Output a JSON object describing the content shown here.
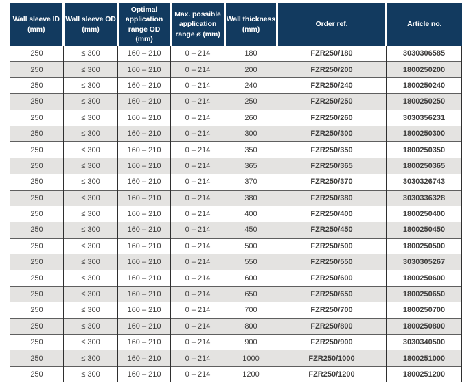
{
  "colors": {
    "header_bg": "#123a5f",
    "header_text": "#ffffff",
    "row_bg": "#ffffff",
    "row_alt_bg": "#e4e3e1",
    "vertical_grid_line": "#2f2f2f",
    "horizontal_grid_line": "#5f5f5f",
    "bottom_border": "#1a1a1a",
    "body_text": "#3f3e3d"
  },
  "table": {
    "columns": [
      {
        "id": "wall-sleeve-id",
        "label": "Wall sleeve ID (mm)",
        "label_lines": [
          "Wall sleeve ID",
          "(mm)"
        ],
        "width": 78,
        "bold": false
      },
      {
        "id": "wall-sleeve-od",
        "label": "Wall sleeve OD (mm)",
        "label_lines": [
          "Wall sleeve OD",
          "(mm)"
        ],
        "width": 79,
        "bold": false
      },
      {
        "id": "optimal-application-range-od",
        "label": "Optimal application range OD (mm)",
        "label_lines": [
          "Optimal",
          "application",
          "range OD",
          "(mm)"
        ],
        "width": 77,
        "bold": false
      },
      {
        "id": "max-possible-application-range",
        "label": "Max. possible application range ø (mm)",
        "label_lines": [
          "Max. possible",
          "application",
          "range ø (mm)"
        ],
        "width": 79,
        "bold": false
      },
      {
        "id": "wall-thickness",
        "label": "Wall thickness (mm)",
        "label_lines": [
          "Wall thickness",
          "(mm)"
        ],
        "width": 76,
        "bold": false
      },
      {
        "id": "order-ref",
        "label": "Order ref.",
        "label_lines": [
          "Order ref."
        ],
        "width": 159,
        "bold": true
      },
      {
        "id": "article-no",
        "label": "Article no.",
        "label_lines": [
          "Article no."
        ],
        "width": 110,
        "bold": true
      }
    ],
    "rows": [
      [
        "250",
        "≤ 300",
        "160 – 210",
        "0 – 214",
        "180",
        "FZR250/180",
        "3030306585"
      ],
      [
        "250",
        "≤ 300",
        "160 – 210",
        "0 – 214",
        "200",
        "FZR250/200",
        "1800250200"
      ],
      [
        "250",
        "≤ 300",
        "160 – 210",
        "0 – 214",
        "240",
        "FZR250/240",
        "1800250240"
      ],
      [
        "250",
        "≤ 300",
        "160 – 210",
        "0 – 214",
        "250",
        "FZR250/250",
        "1800250250"
      ],
      [
        "250",
        "≤ 300",
        "160 – 210",
        "0 – 214",
        "260",
        "FZR250/260",
        "3030356231"
      ],
      [
        "250",
        "≤ 300",
        "160 – 210",
        "0 – 214",
        "300",
        "FZR250/300",
        "1800250300"
      ],
      [
        "250",
        "≤ 300",
        "160 – 210",
        "0 – 214",
        "350",
        "FZR250/350",
        "1800250350"
      ],
      [
        "250",
        "≤ 300",
        "160 – 210",
        "0 – 214",
        "365",
        "FZR250/365",
        "1800250365"
      ],
      [
        "250",
        "≤ 300",
        "160 – 210",
        "0 – 214",
        "370",
        "FZR250/370",
        "3030326743"
      ],
      [
        "250",
        "≤ 300",
        "160 – 210",
        "0 – 214",
        "380",
        "FZR250/380",
        "3030336328"
      ],
      [
        "250",
        "≤ 300",
        "160 – 210",
        "0 – 214",
        "400",
        "FZR250/400",
        "1800250400"
      ],
      [
        "250",
        "≤ 300",
        "160 – 210",
        "0 – 214",
        "450",
        "FZR250/450",
        "1800250450"
      ],
      [
        "250",
        "≤ 300",
        "160 – 210",
        "0 – 214",
        "500",
        "FZR250/500",
        "1800250500"
      ],
      [
        "250",
        "≤ 300",
        "160 – 210",
        "0 – 214",
        "550",
        "FZR250/550",
        "3030305267"
      ],
      [
        "250",
        "≤ 300",
        "160 – 210",
        "0 – 214",
        "600",
        "FZR250/600",
        "1800250600"
      ],
      [
        "250",
        "≤ 300",
        "160 – 210",
        "0 – 214",
        "650",
        "FZR250/650",
        "1800250650"
      ],
      [
        "250",
        "≤ 300",
        "160 – 210",
        "0 – 214",
        "700",
        "FZR250/700",
        "1800250700"
      ],
      [
        "250",
        "≤ 300",
        "160 – 210",
        "0 – 214",
        "800",
        "FZR250/800",
        "1800250800"
      ],
      [
        "250",
        "≤ 300",
        "160 – 210",
        "0 – 214",
        "900",
        "FZR250/900",
        "3030340500"
      ],
      [
        "250",
        "≤ 300",
        "160 – 210",
        "0 – 214",
        "1000",
        "FZR250/1000",
        "1800251000"
      ],
      [
        "250",
        "≤ 300",
        "160 – 210",
        "0 – 214",
        "1200",
        "FZR250/1200",
        "1800251200"
      ]
    ]
  }
}
